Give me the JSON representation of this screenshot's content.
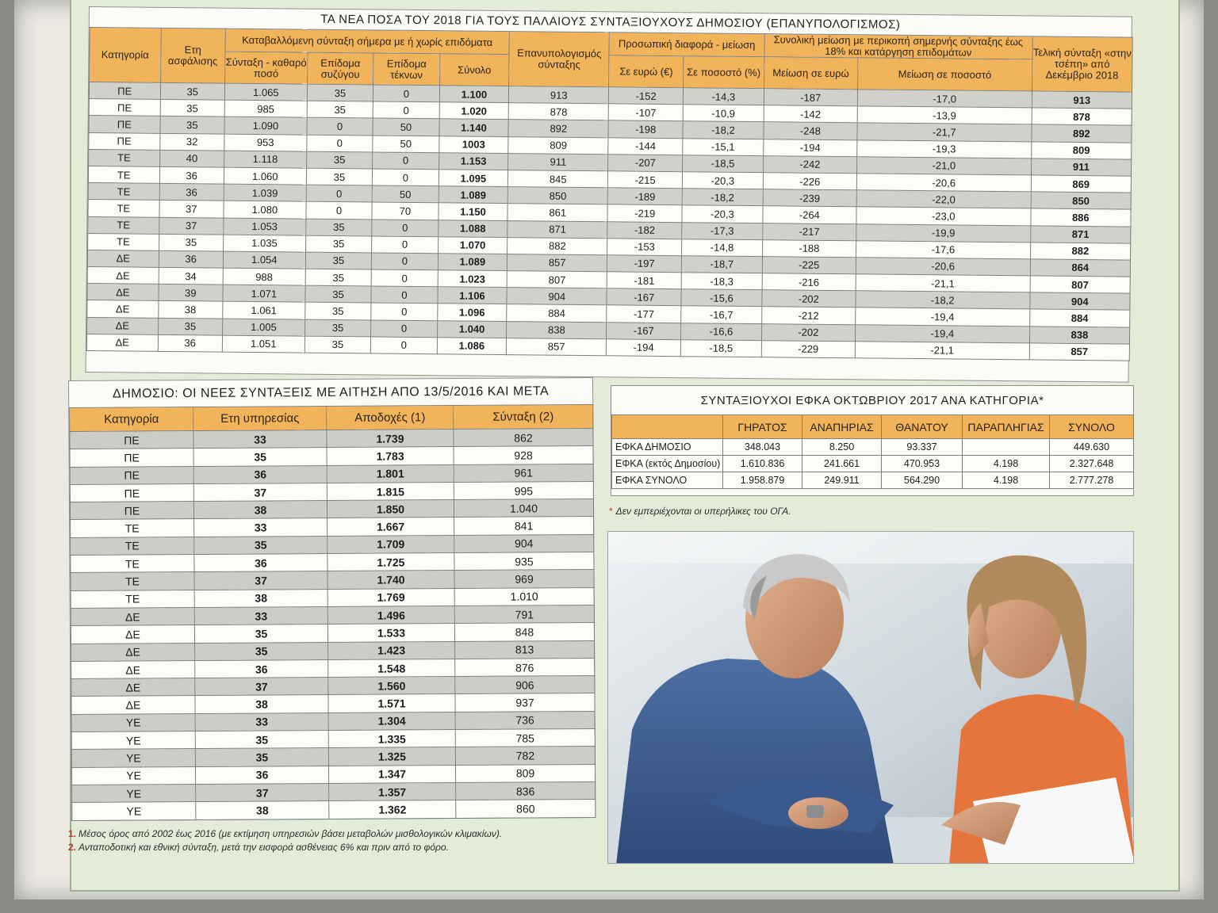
{
  "main_table": {
    "title": "ΤΑ ΝΕΑ ΠΟΣΑ ΤΟΥ 2018 ΓΙΑ ΤΟΥΣ ΠΑΛΑΙΟΥΣ ΣΥΝΤΑΞΙΟΥΧΟΥΣ ΔΗΜΟΣΙΟΥ (ΕΠΑΝΥΠΟΛΟΓΙΣΜΟΣ)",
    "headers": {
      "category": "Κατηγορία",
      "years": "Ετη ασφάλισης",
      "paid_group": "Καταβαλλόμενη σύνταξη σήμερα με ή χωρίς επιδόματα",
      "net": "Σύνταξη - καθαρό ποσό",
      "spouse": "Επίδομα συζύγου",
      "children": "Επίδομα τέκνων",
      "total": "Σύνολο",
      "recalc": "Επανυπολογισμός σύνταξης",
      "personal_group": "Προσωπική διαφορά - μείωση",
      "eur": "Σε ευρώ (€)",
      "pct": "Σε ποσοστό (%)",
      "total_group": "Συνολική μείωση με περικοπή σημερνής σύνταξης έως 18% και κατάργηση επιδομάτων",
      "red_eur": "Μείωση σε ευρώ",
      "red_pct": "Μείωση σε ποσοστό",
      "final": "Τελική σύνταξη «στην τσέπη» από Δεκέμβριο 2018"
    },
    "rows": [
      [
        "ΠΕ",
        "35",
        "1.065",
        "35",
        "0",
        "1.100",
        "913",
        "-152",
        "-14,3",
        "-187",
        "-17,0",
        "913"
      ],
      [
        "ΠΕ",
        "35",
        "985",
        "35",
        "0",
        "1.020",
        "878",
        "-107",
        "-10,9",
        "-142",
        "-13,9",
        "878"
      ],
      [
        "ΠΕ",
        "35",
        "1.090",
        "0",
        "50",
        "1.140",
        "892",
        "-198",
        "-18,2",
        "-248",
        "-21,7",
        "892"
      ],
      [
        "ΠΕ",
        "32",
        "953",
        "0",
        "50",
        "1003",
        "809",
        "-144",
        "-15,1",
        "-194",
        "-19,3",
        "809"
      ],
      [
        "ΤΕ",
        "40",
        "1.118",
        "35",
        "0",
        "1.153",
        "911",
        "-207",
        "-18,5",
        "-242",
        "-21,0",
        "911"
      ],
      [
        "ΤΕ",
        "36",
        "1.060",
        "35",
        "0",
        "1.095",
        "845",
        "-215",
        "-20,3",
        "-226",
        "-20,6",
        "869"
      ],
      [
        "ΤΕ",
        "36",
        "1.039",
        "0",
        "50",
        "1.089",
        "850",
        "-189",
        "-18,2",
        "-239",
        "-22,0",
        "850"
      ],
      [
        "ΤΕ",
        "37",
        "1.080",
        "0",
        "70",
        "1.150",
        "861",
        "-219",
        "-20,3",
        "-264",
        "-23,0",
        "886"
      ],
      [
        "ΤΕ",
        "37",
        "1.053",
        "35",
        "0",
        "1.088",
        "871",
        "-182",
        "-17,3",
        "-217",
        "-19,9",
        "871"
      ],
      [
        "ΤΕ",
        "35",
        "1.035",
        "35",
        "0",
        "1.070",
        "882",
        "-153",
        "-14,8",
        "-188",
        "-17,6",
        "882"
      ],
      [
        "ΔΕ",
        "36",
        "1.054",
        "35",
        "0",
        "1.089",
        "857",
        "-197",
        "-18,7",
        "-225",
        "-20,6",
        "864"
      ],
      [
        "ΔΕ",
        "34",
        "988",
        "35",
        "0",
        "1.023",
        "807",
        "-181",
        "-18,3",
        "-216",
        "-21,1",
        "807"
      ],
      [
        "ΔΕ",
        "39",
        "1.071",
        "35",
        "0",
        "1.106",
        "904",
        "-167",
        "-15,6",
        "-202",
        "-18,2",
        "904"
      ],
      [
        "ΔΕ",
        "38",
        "1.061",
        "35",
        "0",
        "1.096",
        "884",
        "-177",
        "-16,7",
        "-212",
        "-19,4",
        "884"
      ],
      [
        "ΔΕ",
        "35",
        "1.005",
        "35",
        "0",
        "1.040",
        "838",
        "-167",
        "-16,6",
        "-202",
        "-19,4",
        "838"
      ],
      [
        "ΔΕ",
        "36",
        "1.051",
        "35",
        "0",
        "1.086",
        "857",
        "-194",
        "-18,5",
        "-229",
        "-21,1",
        "857"
      ]
    ]
  },
  "new_table": {
    "title": "ΔΗΜΟΣΙΟ: ΟΙ ΝΕΕΣ ΣΥΝΤΑΞΕΙΣ ΜΕ ΑΙΤΗΣΗ ΑΠΟ 13/5/2016 ΚΑΙ ΜΕΤΑ",
    "headers": [
      "Κατηγορία",
      "Ετη υπηρεσίας",
      "Αποδοχές (1)",
      "Σύνταξη (2)"
    ],
    "rows": [
      [
        "ΠΕ",
        "33",
        "1.739",
        "862"
      ],
      [
        "ΠΕ",
        "35",
        "1.783",
        "928"
      ],
      [
        "ΠΕ",
        "36",
        "1.801",
        "961"
      ],
      [
        "ΠΕ",
        "37",
        "1.815",
        "995"
      ],
      [
        "ΠΕ",
        "38",
        "1.850",
        "1.040"
      ],
      [
        "ΤΕ",
        "33",
        "1.667",
        "841"
      ],
      [
        "ΤΕ",
        "35",
        "1.709",
        "904"
      ],
      [
        "ΤΕ",
        "36",
        "1.725",
        "935"
      ],
      [
        "ΤΕ",
        "37",
        "1.740",
        "969"
      ],
      [
        "ΤΕ",
        "38",
        "1.769",
        "1.010"
      ],
      [
        "ΔΕ",
        "33",
        "1.496",
        "791"
      ],
      [
        "ΔΕ",
        "35",
        "1.533",
        "848"
      ],
      [
        "ΔΕ",
        "35",
        "1.423",
        "813"
      ],
      [
        "ΔΕ",
        "36",
        "1.548",
        "876"
      ],
      [
        "ΔΕ",
        "37",
        "1.560",
        "906"
      ],
      [
        "ΔΕ",
        "38",
        "1.571",
        "937"
      ],
      [
        "ΥΕ",
        "33",
        "1.304",
        "736"
      ],
      [
        "ΥΕ",
        "35",
        "1.335",
        "785"
      ],
      [
        "ΥΕ",
        "35",
        "1.325",
        "782"
      ],
      [
        "ΥΕ",
        "36",
        "1.347",
        "809"
      ],
      [
        "ΥΕ",
        "37",
        "1.357",
        "836"
      ],
      [
        "ΥΕ",
        "38",
        "1.362",
        "860"
      ]
    ],
    "notes": [
      {
        "n": "1.",
        "text": "Μέσος όρος από 2002 έως 2016 (με εκτίμηση υπηρεσιών βάσει μεταβολών μισθολογικών κλιμακίων)."
      },
      {
        "n": "2.",
        "text": "Ανταποδοτική και εθνική σύνταξη, μετά την εισφορά ασθένειας 6% και πριν από το φόρο."
      }
    ]
  },
  "efka_table": {
    "title": "ΣΥΝΤΑΞΙΟΥΧΟΙ ΕΦΚΑ ΟΚΤΩΒΡΙΟΥ 2017 ΑΝΑ ΚΑΤΗΓΟΡΙΑ*",
    "headers": [
      "ΓΗΡΑΤΟΣ",
      "ΑΝΑΠΗΡΙΑΣ",
      "ΘΑΝΑΤΟΥ",
      "ΠΑΡΑΠΛΗΓΙΑΣ",
      "ΣΥΝΟΛΟ"
    ],
    "rows": [
      [
        "ΕΦΚΑ ΔΗΜΟΣΙΟ",
        "348.043",
        "8.250",
        "93.337",
        "",
        "449.630"
      ],
      [
        "ΕΦΚΑ (εκτός Δημοσίου)",
        "1.610.836",
        "241.661",
        "470.953",
        "4.198",
        "2.327.648"
      ],
      [
        "ΕΦΚΑ ΣΥΝΟΛΟ",
        "1.958.879",
        "249.911",
        "564.290",
        "4.198",
        "2.777.278"
      ]
    ],
    "footnote_mark": "*",
    "footnote": "Δεν εμπεριέχονται οι υπερήλικες του ΟΓΑ."
  },
  "colors": {
    "header": "#f2b45a",
    "band": "#d1d1cb",
    "frame": "#e4ecd8",
    "note_number": "#c0392b"
  }
}
